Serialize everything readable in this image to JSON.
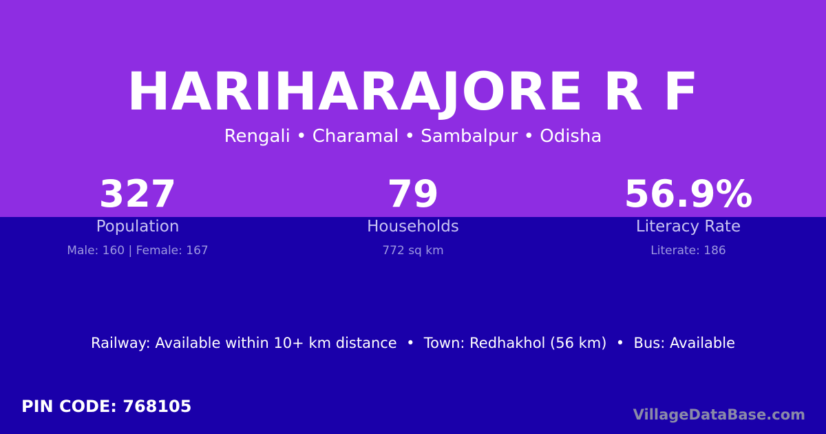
{
  "title": "HARIHARAJORE R F",
  "subtitle": "Rengali • Charamal • Sambalpur • Odisha",
  "stats": [
    {
      "value": "327",
      "label": "Population",
      "detail": "Male: 160 | Female: 167"
    },
    {
      "value": "79",
      "label": "Households",
      "detail": "772 sq km"
    },
    {
      "value": "56.9%",
      "label": "Literacy Rate",
      "detail": "Literate: 186"
    }
  ],
  "info": "Railway: Available within 10+ km distance  •  Town: Redhakhol (56 km)  •  Bus: Available",
  "pin": "PIN CODE: 768105",
  "brand": "VillageDataBase.com",
  "colors": {
    "top": "#8e2de2",
    "bottom": "#1a00aa"
  }
}
